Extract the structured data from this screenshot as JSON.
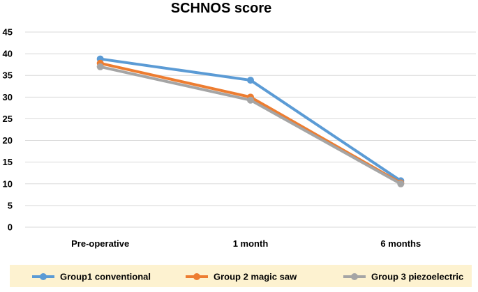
{
  "chart_data": {
    "type": "line",
    "title": "SCHNOS score",
    "xlabel": "",
    "ylabel": "",
    "categories": [
      "Pre-operative",
      "1 month",
      "6 months"
    ],
    "ylim": [
      0,
      45
    ],
    "yticks": [
      0,
      5,
      10,
      15,
      20,
      25,
      30,
      35,
      40,
      45
    ],
    "grid": true,
    "legend_placement": "bottom",
    "legend_background": "#fdf2d0",
    "series": [
      {
        "name": "Group1 conventional",
        "color": "#5b9bd5",
        "values": [
          38.8,
          33.9,
          10.7
        ]
      },
      {
        "name": "Group 2 magic saw",
        "color": "#ed7d31",
        "values": [
          37.8,
          30.0,
          10.2
        ]
      },
      {
        "name": "Group 3 piezoelectric",
        "color": "#a5a5a5",
        "values": [
          37.0,
          29.3,
          10.0
        ]
      }
    ]
  }
}
